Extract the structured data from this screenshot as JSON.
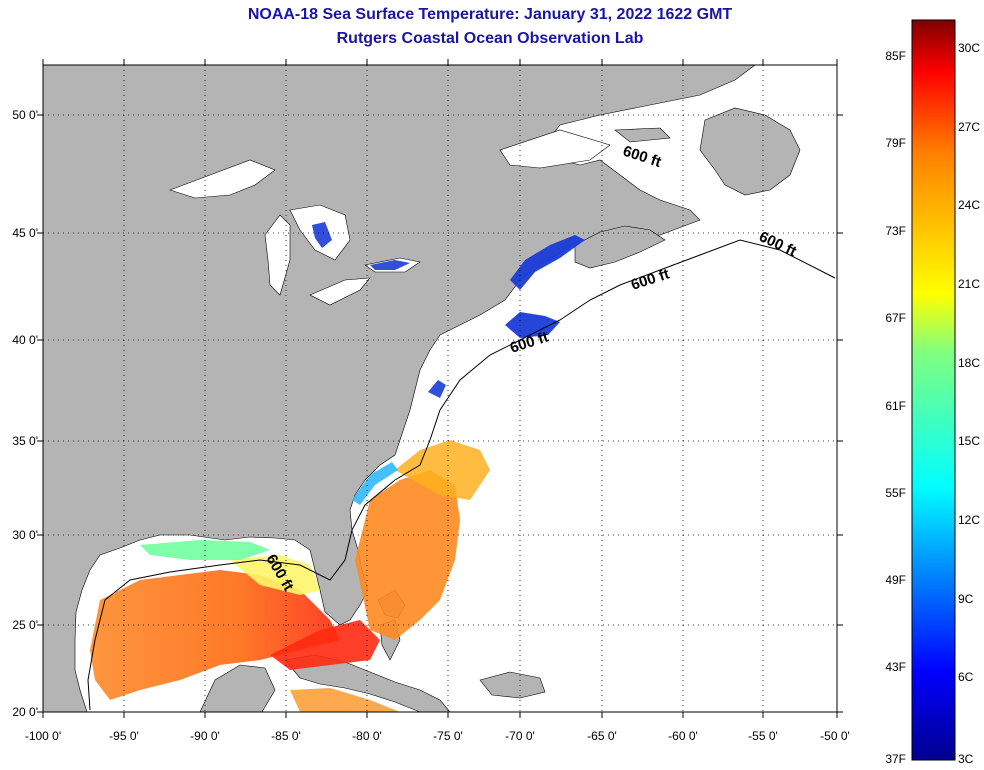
{
  "title": "NOAA-18 Sea Surface Temperature:  January 31, 2022 1622 GMT",
  "subtitle": "Rutgers Coastal Ocean Observation Lab",
  "map": {
    "lon_ticks": [
      "-100 0'",
      "-95 0'",
      "-90 0'",
      "-85 0'",
      "-80 0'",
      "-75 0'",
      "-70 0'",
      "-65 0'",
      "-60 0'",
      "-55 0'",
      "-50 0'"
    ],
    "lat_ticks": [
      "50 0'",
      "45 0'",
      "40 0'",
      "35 0'",
      "30 0'",
      "25 0'",
      "20 0'"
    ],
    "contour_labels": [
      "600 ft",
      "600 ft",
      "600 ft",
      "600 ft",
      "600 ft"
    ],
    "land_color": "#b4b4b4",
    "lake_color": "#ffffff",
    "no_data_color": "#ffffff",
    "grid": true
  },
  "colorbar": {
    "fahrenheit_labels": [
      "85F",
      "79F",
      "73F",
      "67F",
      "61F",
      "55F",
      "49F",
      "43F",
      "37F"
    ],
    "celsius_labels": [
      "30C",
      "27C",
      "24C",
      "21C",
      "18C",
      "15C",
      "12C",
      "9C",
      "6C",
      "3C"
    ],
    "colors": [
      "#7f0000",
      "#ff0000",
      "#ff8000",
      "#ffff00",
      "#80ff80",
      "#00ffff",
      "#0080ff",
      "#0000ff",
      "#00008f"
    ]
  }
}
